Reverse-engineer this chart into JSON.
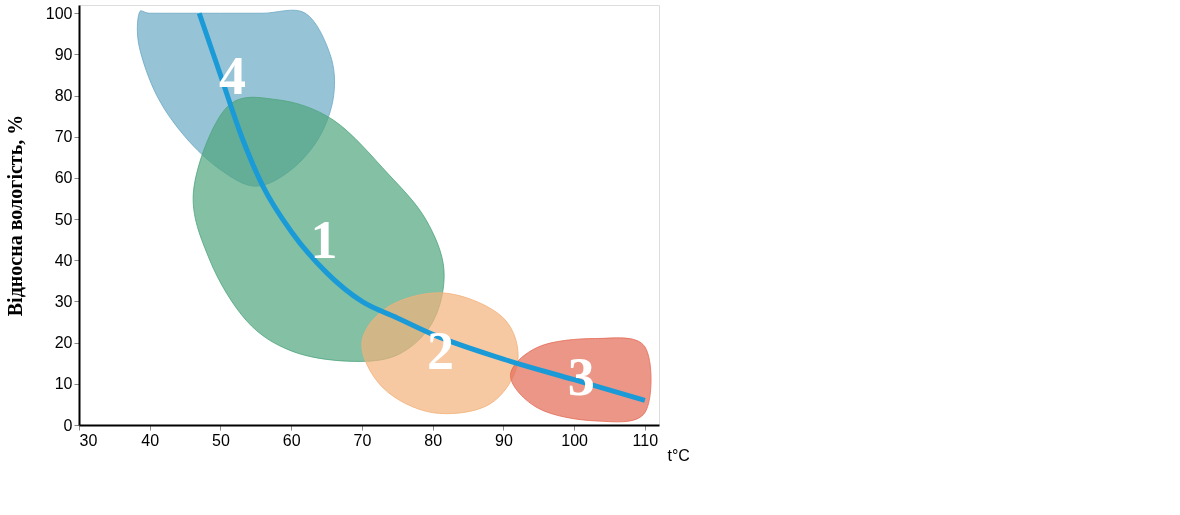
{
  "chart_data": {
    "type": "line",
    "xlabel": "t°C",
    "ylabel": "Відносна вологість, %",
    "xlim": [
      30,
      112
    ],
    "ylim": [
      0,
      102
    ],
    "xticks": [
      30,
      40,
      50,
      60,
      70,
      80,
      90,
      100,
      110
    ],
    "yticks": [
      0,
      10,
      20,
      30,
      40,
      50,
      60,
      70,
      80,
      90,
      100
    ],
    "grid": false,
    "series": [
      {
        "type": "area",
        "color": "#6aa9c4",
        "x": [
          38.5,
          40,
          44,
          50,
          56,
          62,
          65.5,
          66,
          64,
          60,
          55,
          50,
          45,
          41,
          38.5
        ],
        "values": [
          100,
          100,
          100,
          100,
          100,
          100,
          90,
          80,
          70,
          62,
          58,
          62,
          70,
          80,
          92
        ]
      },
      {
        "type": "area",
        "color": "#4ea57e",
        "x": [
          46.2,
          50.8,
          58,
          66,
          73.7,
          79,
          81.6,
          80,
          75,
          68,
          60,
          53.7,
          48.5
        ],
        "values": [
          57,
          77,
          79,
          74,
          61,
          50,
          37.6,
          25,
          17,
          15.5,
          18,
          25.3,
          40
        ]
      },
      {
        "type": "area",
        "color": "#f2b27a",
        "x": [
          70,
          74,
          82,
          90,
          92,
          88,
          80,
          73
        ],
        "values": [
          20,
          29,
          32,
          26,
          15,
          5,
          3,
          9
        ]
      },
      {
        "type": "area",
        "color": "#e46a55",
        "x": [
          91,
          95,
          103,
          110,
          110,
          103,
          95
        ],
        "values": [
          12,
          19,
          21,
          19,
          3,
          1,
          4
        ]
      },
      {
        "color": "#1a9ad6",
        "x": [
          47,
          50,
          53,
          56,
          60,
          65,
          70,
          75,
          80,
          90,
          100,
          110
        ],
        "values": [
          100,
          85,
          70,
          58,
          47,
          37,
          30,
          26,
          22,
          16,
          11,
          6
        ]
      }
    ],
    "annotations": [
      "4",
      "1",
      "2",
      "3"
    ]
  }
}
